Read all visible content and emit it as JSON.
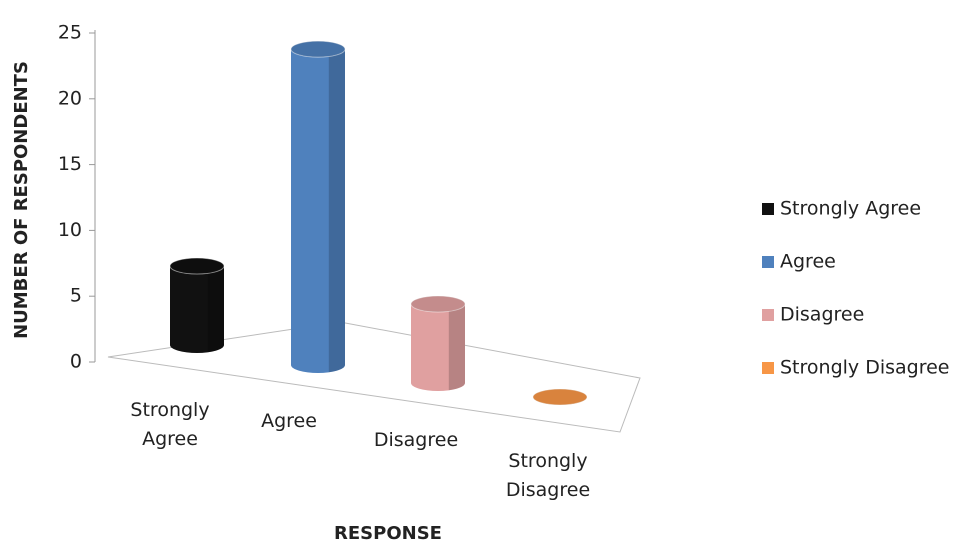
{
  "chart_data": {
    "type": "bar3d",
    "y_label": "NUMBER OF RESPONDENTS",
    "x_label": "RESPONSE",
    "categories": [
      "Strongly Agree",
      "Agree",
      "Disagree",
      "Strongly Disagree"
    ],
    "values": [
      6,
      24,
      6,
      0
    ],
    "colors": [
      "#111111",
      "#4f81bd",
      "#e0a0a0",
      "#f79646"
    ],
    "ylim": [
      0,
      25
    ],
    "yticks": [
      0,
      5,
      10,
      15,
      20,
      25
    ],
    "legend": "right"
  }
}
